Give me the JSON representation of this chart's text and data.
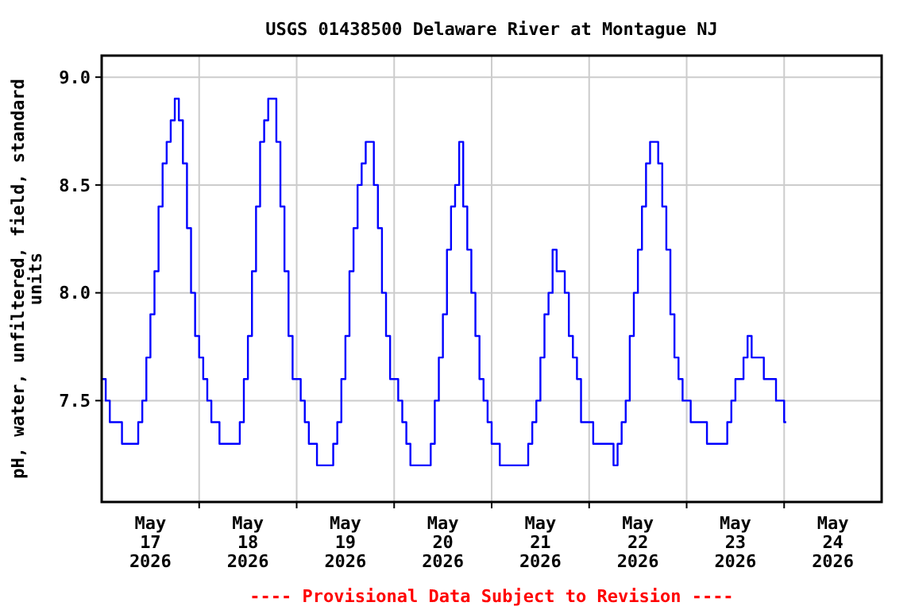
{
  "chart_data": {
    "type": "step",
    "title": "USGS 01438500 Delaware River at Montague NJ",
    "ylabel": "pH, water, unfiltered, field, standard\nunits",
    "annotations": [
      "---- Provisional Data Subject to Revision ----"
    ],
    "xlim": [
      "2026-05-17T00:00",
      "2026-05-25T00:00"
    ],
    "xticks": [
      {
        "value": "2026-05-17T12:00",
        "label": "May\n17\n2026"
      },
      {
        "value": "2026-05-18T12:00",
        "label": "May\n18\n2026"
      },
      {
        "value": "2026-05-19T12:00",
        "label": "May\n19\n2026"
      },
      {
        "value": "2026-05-20T12:00",
        "label": "May\n20\n2026"
      },
      {
        "value": "2026-05-21T12:00",
        "label": "May\n21\n2026"
      },
      {
        "value": "2026-05-22T12:00",
        "label": "May\n22\n2026"
      },
      {
        "value": "2026-05-23T12:00",
        "label": "May\n23\n2026"
      },
      {
        "value": "2026-05-24T12:00",
        "label": "May\n24\n2026"
      },
      {
        "value": "2026-05-18T00:00",
        "label": null
      },
      {
        "value": "2026-05-19T00:00",
        "label": null
      },
      {
        "value": "2026-05-20T00:00",
        "label": null
      },
      {
        "value": "2026-05-21T00:00",
        "label": null
      },
      {
        "value": "2026-05-22T00:00",
        "label": null
      },
      {
        "value": "2026-05-23T00:00",
        "label": null
      },
      {
        "value": "2026-05-24T00:00",
        "label": null
      }
    ],
    "ylim": [
      7.03,
      9.1
    ],
    "yticks": [
      {
        "value": 7.5,
        "label": "7.5"
      },
      {
        "value": 8,
        "label": "8.0"
      },
      {
        "value": 8.5,
        "label": "8.5"
      },
      {
        "value": 9,
        "label": "9.0"
      }
    ],
    "grid": true,
    "line_style": "solid",
    "marker": "none",
    "series": [
      {
        "color": "#0000ff",
        "x": [
          "2026-05-17T00:00",
          "2026-05-17T01:00",
          "2026-05-17T02:00",
          "2026-05-17T03:00",
          "2026-05-17T04:00",
          "2026-05-17T05:00",
          "2026-05-17T06:00",
          "2026-05-17T07:00",
          "2026-05-17T08:00",
          "2026-05-17T09:00",
          "2026-05-17T10:00",
          "2026-05-17T11:00",
          "2026-05-17T12:00",
          "2026-05-17T13:00",
          "2026-05-17T14:00",
          "2026-05-17T15:00",
          "2026-05-17T16:00",
          "2026-05-17T17:00",
          "2026-05-17T18:00",
          "2026-05-17T19:00",
          "2026-05-17T20:00",
          "2026-05-17T21:00",
          "2026-05-17T22:00",
          "2026-05-17T23:00",
          "2026-05-18T00:00",
          "2026-05-18T01:00",
          "2026-05-18T02:00",
          "2026-05-18T03:00",
          "2026-05-18T04:00",
          "2026-05-18T05:00",
          "2026-05-18T06:00",
          "2026-05-18T07:00",
          "2026-05-18T08:00",
          "2026-05-18T09:00",
          "2026-05-18T10:00",
          "2026-05-18T11:00",
          "2026-05-18T12:00",
          "2026-05-18T13:00",
          "2026-05-18T14:00",
          "2026-05-18T15:00",
          "2026-05-18T16:00",
          "2026-05-18T17:00",
          "2026-05-18T18:00",
          "2026-05-18T19:00",
          "2026-05-18T20:00",
          "2026-05-18T21:00",
          "2026-05-18T22:00",
          "2026-05-18T23:00",
          "2026-05-19T00:00",
          "2026-05-19T01:00",
          "2026-05-19T02:00",
          "2026-05-19T03:00",
          "2026-05-19T04:00",
          "2026-05-19T05:00",
          "2026-05-19T06:00",
          "2026-05-19T07:00",
          "2026-05-19T08:00",
          "2026-05-19T09:00",
          "2026-05-19T10:00",
          "2026-05-19T11:00",
          "2026-05-19T12:00",
          "2026-05-19T13:00",
          "2026-05-19T14:00",
          "2026-05-19T15:00",
          "2026-05-19T16:00",
          "2026-05-19T17:00",
          "2026-05-19T18:00",
          "2026-05-19T19:00",
          "2026-05-19T20:00",
          "2026-05-19T21:00",
          "2026-05-19T22:00",
          "2026-05-19T23:00",
          "2026-05-20T00:00",
          "2026-05-20T01:00",
          "2026-05-20T02:00",
          "2026-05-20T03:00",
          "2026-05-20T04:00",
          "2026-05-20T05:00",
          "2026-05-20T06:00",
          "2026-05-20T07:00",
          "2026-05-20T08:00",
          "2026-05-20T09:00",
          "2026-05-20T10:00",
          "2026-05-20T11:00",
          "2026-05-20T12:00",
          "2026-05-20T13:00",
          "2026-05-20T14:00",
          "2026-05-20T15:00",
          "2026-05-20T16:00",
          "2026-05-20T17:00",
          "2026-05-20T18:00",
          "2026-05-20T19:00",
          "2026-05-20T20:00",
          "2026-05-20T21:00",
          "2026-05-20T22:00",
          "2026-05-20T23:00",
          "2026-05-21T00:00",
          "2026-05-21T01:00",
          "2026-05-21T02:00",
          "2026-05-21T03:00",
          "2026-05-21T04:00",
          "2026-05-21T05:00",
          "2026-05-21T06:00",
          "2026-05-21T07:00",
          "2026-05-21T08:00",
          "2026-05-21T09:00",
          "2026-05-21T10:00",
          "2026-05-21T11:00",
          "2026-05-21T12:00",
          "2026-05-21T13:00",
          "2026-05-21T14:00",
          "2026-05-21T15:00",
          "2026-05-21T16:00",
          "2026-05-21T17:00",
          "2026-05-21T18:00",
          "2026-05-21T19:00",
          "2026-05-21T20:00",
          "2026-05-21T21:00",
          "2026-05-21T22:00",
          "2026-05-21T23:00",
          "2026-05-22T00:00",
          "2026-05-22T01:00",
          "2026-05-22T02:00",
          "2026-05-22T03:00",
          "2026-05-22T04:00",
          "2026-05-22T05:00",
          "2026-05-22T06:00",
          "2026-05-22T07:00",
          "2026-05-22T08:00",
          "2026-05-22T09:00",
          "2026-05-22T10:00",
          "2026-05-22T11:00",
          "2026-05-22T12:00",
          "2026-05-22T13:00",
          "2026-05-22T14:00",
          "2026-05-22T15:00",
          "2026-05-22T16:00",
          "2026-05-22T17:00",
          "2026-05-22T18:00",
          "2026-05-22T19:00",
          "2026-05-22T20:00",
          "2026-05-22T21:00",
          "2026-05-22T22:00",
          "2026-05-22T23:00",
          "2026-05-23T00:00",
          "2026-05-23T01:00",
          "2026-05-23T02:00",
          "2026-05-23T03:00",
          "2026-05-23T04:00",
          "2026-05-23T05:00",
          "2026-05-23T06:00",
          "2026-05-23T07:00",
          "2026-05-23T08:00",
          "2026-05-23T09:00",
          "2026-05-23T10:00",
          "2026-05-23T11:00",
          "2026-05-23T12:00",
          "2026-05-23T13:00",
          "2026-05-23T14:00",
          "2026-05-23T15:00",
          "2026-05-23T16:00",
          "2026-05-23T17:00",
          "2026-05-23T18:00",
          "2026-05-23T19:00",
          "2026-05-23T20:00",
          "2026-05-23T21:00",
          "2026-05-23T22:00",
          "2026-05-23T23:00",
          "2026-05-24T00:00",
          "2026-05-24T00:30"
        ],
        "values": [
          7.6,
          7.5,
          7.4,
          7.4,
          7.4,
          7.3,
          7.3,
          7.3,
          7.3,
          7.4,
          7.5,
          7.7,
          7.9,
          8.1,
          8.4,
          8.6,
          8.7,
          8.8,
          8.9,
          8.8,
          8.6,
          8.3,
          8.0,
          7.8,
          7.7,
          7.6,
          7.5,
          7.4,
          7.4,
          7.3,
          7.3,
          7.3,
          7.3,
          7.3,
          7.4,
          7.6,
          7.8,
          8.1,
          8.4,
          8.7,
          8.8,
          8.9,
          8.9,
          8.7,
          8.4,
          8.1,
          7.8,
          7.6,
          7.6,
          7.5,
          7.4,
          7.3,
          7.3,
          7.2,
          7.2,
          7.2,
          7.2,
          7.3,
          7.4,
          7.6,
          7.8,
          8.1,
          8.3,
          8.5,
          8.6,
          8.7,
          8.7,
          8.5,
          8.3,
          8.0,
          7.8,
          7.6,
          7.6,
          7.5,
          7.4,
          7.3,
          7.2,
          7.2,
          7.2,
          7.2,
          7.2,
          7.3,
          7.5,
          7.7,
          7.9,
          8.2,
          8.4,
          8.5,
          8.7,
          8.4,
          8.2,
          8.0,
          7.8,
          7.6,
          7.5,
          7.4,
          7.3,
          7.3,
          7.2,
          7.2,
          7.2,
          7.2,
          7.2,
          7.2,
          7.2,
          7.3,
          7.4,
          7.5,
          7.7,
          7.9,
          8.0,
          8.2,
          8.1,
          8.1,
          8.0,
          7.8,
          7.7,
          7.6,
          7.4,
          7.4,
          7.4,
          7.3,
          7.3,
          7.3,
          7.3,
          7.3,
          7.2,
          7.3,
          7.4,
          7.5,
          7.8,
          8.0,
          8.2,
          8.4,
          8.6,
          8.7,
          8.7,
          8.6,
          8.4,
          8.2,
          7.9,
          7.7,
          7.6,
          7.5,
          7.5,
          7.4,
          7.4,
          7.4,
          7.4,
          7.3,
          7.3,
          7.3,
          7.3,
          7.3,
          7.4,
          7.5,
          7.6,
          7.6,
          7.7,
          7.8,
          7.7,
          7.7,
          7.7,
          7.6,
          7.6,
          7.6,
          7.5,
          7.5,
          7.4,
          7.4
        ]
      }
    ]
  }
}
